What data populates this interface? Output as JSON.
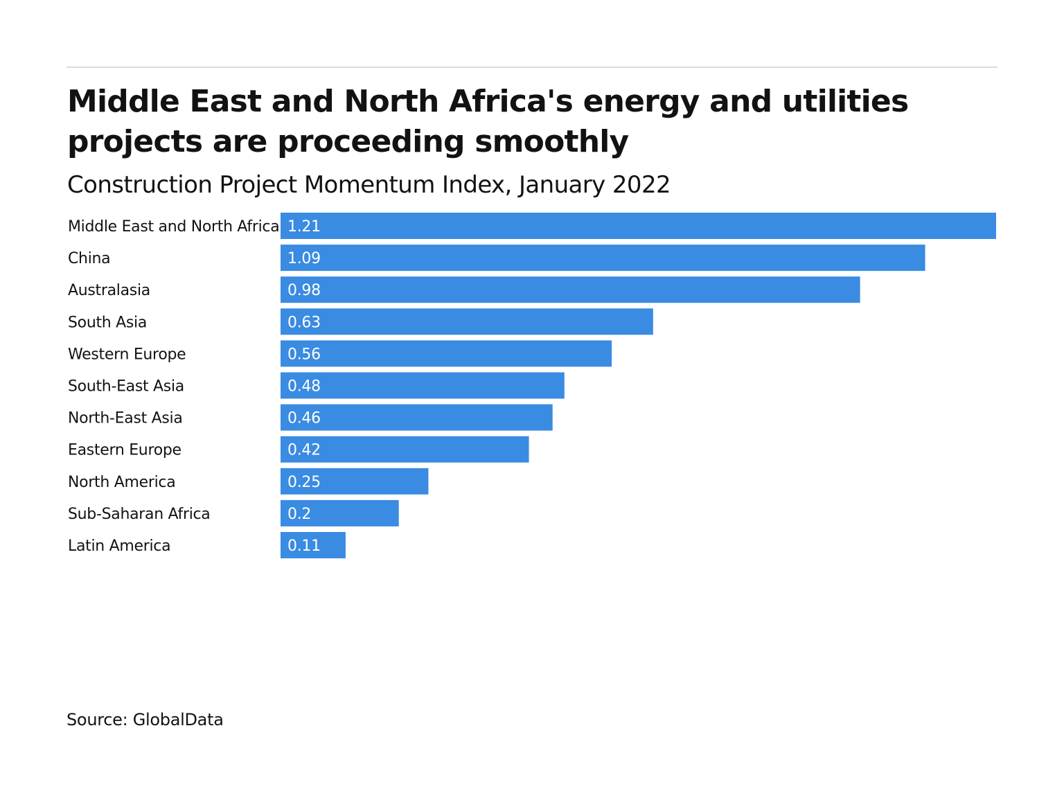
{
  "chart_data": {
    "type": "bar",
    "orientation": "horizontal",
    "title": "Middle East and North Africa's energy and utilities projects are proceeding smoothly",
    "subtitle": "Construction Project Momentum Index, January 2022",
    "categories": [
      "Middle East and North Africa",
      "China",
      "Australasia",
      "South Asia",
      "Western Europe",
      "South-East Asia",
      "North-East Asia",
      "Eastern Europe",
      "North America",
      "Sub-Saharan Africa",
      "Latin America"
    ],
    "values": [
      1.21,
      1.09,
      0.98,
      0.63,
      0.56,
      0.48,
      0.46,
      0.42,
      0.25,
      0.2,
      0.11
    ],
    "value_labels": [
      "1.21",
      "1.09",
      "0.98",
      "0.63",
      "0.56",
      "0.48",
      "0.46",
      "0.42",
      "0.25",
      "0.2",
      "0.11"
    ],
    "xlim": [
      0,
      1.21
    ],
    "xlabel": "",
    "ylabel": "",
    "grid": false,
    "bar_color": "#3a8be2"
  },
  "source": "Source: GlobalData",
  "colors": {
    "rule": "#dcdcdc",
    "text": "#121212",
    "bar": "#3a8be2"
  }
}
